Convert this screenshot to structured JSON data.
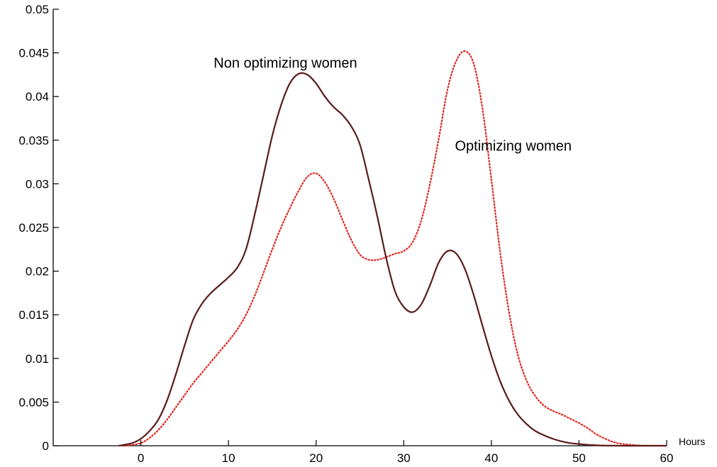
{
  "chart_data": {
    "type": "line",
    "title": "",
    "xlabel": "Hours",
    "ylabel": "",
    "xlim": [
      -10,
      60
    ],
    "ylim": [
      0,
      0.05
    ],
    "x_ticks": [
      0,
      10,
      20,
      30,
      40,
      50,
      60
    ],
    "x_tick_labels": [
      "0",
      "10",
      "20",
      "30",
      "40",
      "50",
      "60"
    ],
    "y_ticks": [
      0,
      0.005,
      0.01,
      0.015,
      0.02,
      0.025,
      0.03,
      0.035,
      0.04,
      0.045,
      0.05
    ],
    "y_tick_labels": [
      "0",
      "0.005",
      "0.01",
      "0.015",
      "0.02",
      "0.025",
      "0.03",
      "0.035",
      "0.04",
      "0.045",
      "0.05"
    ],
    "grid": false,
    "legend": "none",
    "annotations": [
      {
        "text": "Non optimizing women",
        "x": 16.5,
        "y": 0.0433
      },
      {
        "text": "Optimizing women",
        "x": 42.5,
        "y": 0.0338
      }
    ],
    "series": [
      {
        "key": "non_optimizing",
        "color": "#5a1a1a",
        "style": "solid",
        "x": [
          -2.5,
          -1,
          0,
          1,
          2,
          3,
          4,
          5,
          6,
          7,
          8,
          9,
          10,
          11,
          12,
          13,
          14,
          15,
          16,
          17,
          18,
          19,
          20,
          21,
          22,
          23,
          24,
          25,
          26,
          27,
          28,
          29,
          30,
          31,
          32,
          33,
          34,
          35,
          36,
          37,
          38,
          39,
          40,
          41,
          42,
          43,
          44,
          45,
          46,
          47,
          48,
          49,
          50,
          51,
          52,
          53,
          54,
          55,
          56,
          57,
          58,
          59,
          60
        ],
        "values": [
          0,
          0.0003,
          0.0008,
          0.0017,
          0.003,
          0.0052,
          0.0082,
          0.0115,
          0.0145,
          0.0163,
          0.0175,
          0.0184,
          0.0193,
          0.0204,
          0.0225,
          0.0265,
          0.031,
          0.0355,
          0.039,
          0.0415,
          0.0426,
          0.0425,
          0.0415,
          0.04,
          0.0388,
          0.0379,
          0.0366,
          0.0345,
          0.0305,
          0.0262,
          0.0215,
          0.0177,
          0.0159,
          0.0153,
          0.0162,
          0.0184,
          0.021,
          0.0223,
          0.022,
          0.0202,
          0.0172,
          0.0137,
          0.0103,
          0.0074,
          0.0052,
          0.0036,
          0.0025,
          0.0017,
          0.0012,
          0.0008,
          0.0005,
          0.0003,
          0.0002,
          0.0001,
          5e-05,
          2e-05,
          1e-05,
          0,
          0,
          0,
          0,
          0,
          0
        ]
      },
      {
        "key": "optimizing",
        "color": "#e0241c",
        "style": "dotted",
        "x": [
          -2,
          -1,
          0,
          1,
          2,
          3,
          4,
          5,
          6,
          7,
          8,
          9,
          10,
          11,
          12,
          13,
          14,
          15,
          16,
          17,
          18,
          19,
          20,
          21,
          22,
          23,
          24,
          25,
          26,
          27,
          28,
          29,
          30,
          31,
          32,
          33,
          34,
          35,
          36,
          37,
          38,
          39,
          40,
          41,
          42,
          43,
          44,
          45,
          46,
          47,
          48,
          49,
          50,
          51,
          52,
          53,
          54,
          55,
          56,
          57,
          58,
          59,
          60
        ],
        "values": [
          0,
          0.0001,
          0.0003,
          0.0009,
          0.0018,
          0.003,
          0.0044,
          0.0058,
          0.0072,
          0.0084,
          0.0096,
          0.0108,
          0.012,
          0.0133,
          0.015,
          0.0172,
          0.0198,
          0.0225,
          0.025,
          0.0272,
          0.0292,
          0.0308,
          0.0312,
          0.0302,
          0.0283,
          0.0259,
          0.0236,
          0.0219,
          0.0213,
          0.0213,
          0.0216,
          0.022,
          0.0223,
          0.0233,
          0.0258,
          0.03,
          0.0352,
          0.0408,
          0.0441,
          0.0452,
          0.0437,
          0.0385,
          0.0305,
          0.0222,
          0.0154,
          0.0105,
          0.0075,
          0.0057,
          0.0046,
          0.004,
          0.0036,
          0.0031,
          0.0026,
          0.002,
          0.0013,
          0.0008,
          0.0004,
          0.0002,
          0.0001,
          3e-05,
          1e-05,
          0,
          0
        ]
      }
    ]
  }
}
